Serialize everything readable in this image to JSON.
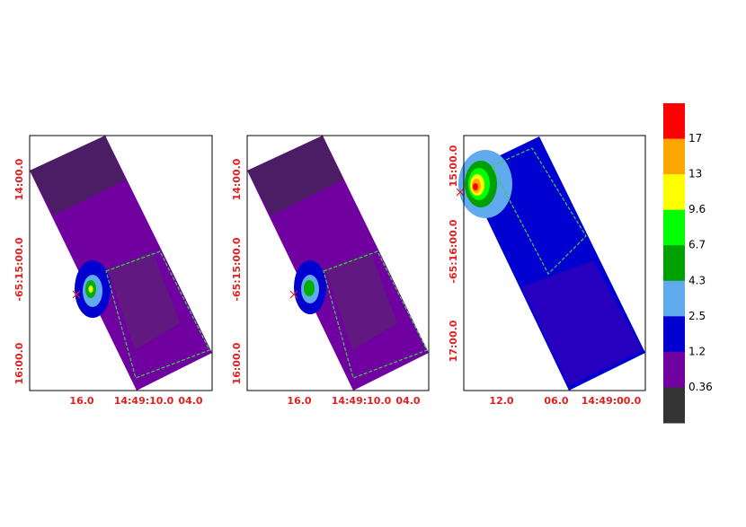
{
  "panels": [
    {
      "xticks": [
        "16.0",
        "14:49:10.0",
        "04.0"
      ],
      "yticks": [
        "14:00.0",
        "-65:15:00.0",
        "16:00.0"
      ]
    },
    {
      "xticks": [
        "16.0",
        "14:49:10.0",
        "04.0"
      ],
      "yticks": [
        "14:00.0",
        "-65:15:00.0",
        "16:00.0"
      ]
    },
    {
      "xticks": [
        "12.0",
        "06.0",
        "14:49:00.0"
      ],
      "yticks": [
        "15:00.0",
        "-65:16:00.0",
        "17:00.0"
      ]
    }
  ],
  "colorbar": {
    "labels": [
      "17",
      "13",
      "9.6",
      "6.7",
      "4.3",
      "2.5",
      "1.2",
      "0.36"
    ],
    "colors": [
      "#ff0000",
      "#ffa500",
      "#ffff00",
      "#00ff00",
      "#00a000",
      "#60aaee",
      "#0000d0",
      "#7000a0",
      "#333333"
    ]
  }
}
